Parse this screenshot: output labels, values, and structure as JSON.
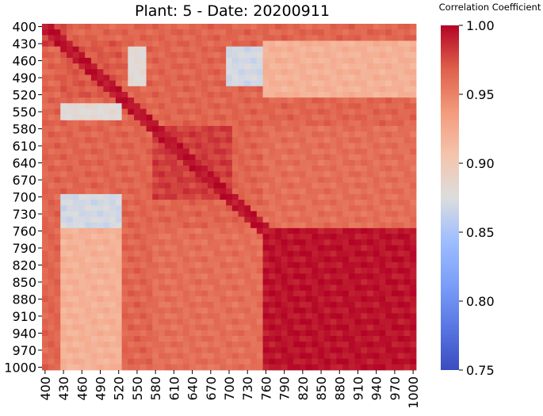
{
  "chart_data": {
    "type": "heatmap",
    "title": "Plant: 5 - Date: 20200911",
    "xlabel": "",
    "ylabel": "",
    "colorbar": {
      "label": "Correlation Coefficient",
      "min": 0.75,
      "max": 1.0,
      "ticks": [
        "0.75",
        "0.80",
        "0.85",
        "0.90",
        "0.95",
        "1.00"
      ],
      "colormap": "coolwarm",
      "colors": {
        "low": "#3b4cc0",
        "mid": "#dddddd",
        "high": "#b40426"
      }
    },
    "x_tick_labels": [
      "400",
      "430",
      "460",
      "490",
      "520",
      "550",
      "580",
      "610",
      "640",
      "670",
      "700",
      "730",
      "760",
      "790",
      "820",
      "850",
      "880",
      "910",
      "940",
      "970",
      "1000"
    ],
    "y_tick_labels": [
      "400",
      "430",
      "460",
      "490",
      "520",
      "550",
      "580",
      "610",
      "640",
      "670",
      "700",
      "730",
      "760",
      "790",
      "820",
      "850",
      "880",
      "910",
      "940",
      "970",
      "1000"
    ],
    "wavelength_range": [
      400,
      1000
    ],
    "wavelength_step": 10,
    "grid": false,
    "legend": "colorbar-right",
    "blocks": [
      {
        "x_range": [
          400,
          430
        ],
        "y_range": [
          400,
          430
        ],
        "value": 0.98
      },
      {
        "x_range": [
          430,
          520
        ],
        "y_range": [
          430,
          520
        ],
        "value": 0.97
      },
      {
        "x_range": [
          430,
          520
        ],
        "y_range": [
          540,
          560
        ],
        "value": 0.88
      },
      {
        "x_range": [
          430,
          520
        ],
        "y_range": [
          700,
          750
        ],
        "value": 0.87
      },
      {
        "x_range": [
          540,
          560
        ],
        "y_range": [
          440,
          500
        ],
        "value": 0.88
      },
      {
        "x_range": [
          700,
          750
        ],
        "y_range": [
          440,
          500
        ],
        "value": 0.87
      },
      {
        "x_range": [
          580,
          700
        ],
        "y_range": [
          580,
          700
        ],
        "value": 0.98
      },
      {
        "x_range": [
          760,
          1000
        ],
        "y_range": [
          760,
          1000
        ],
        "value": 0.995
      },
      {
        "x_range": [
          430,
          520
        ],
        "y_range": [
          760,
          1000
        ],
        "value": 0.92
      },
      {
        "x_range": [
          760,
          1000
        ],
        "y_range": [
          430,
          520
        ],
        "value": 0.92
      },
      {
        "x_range": [
          580,
          750
        ],
        "y_range": [
          760,
          1000
        ],
        "value": 0.96
      },
      {
        "x_range": [
          760,
          1000
        ],
        "y_range": [
          580,
          750
        ],
        "value": 0.96
      }
    ]
  }
}
